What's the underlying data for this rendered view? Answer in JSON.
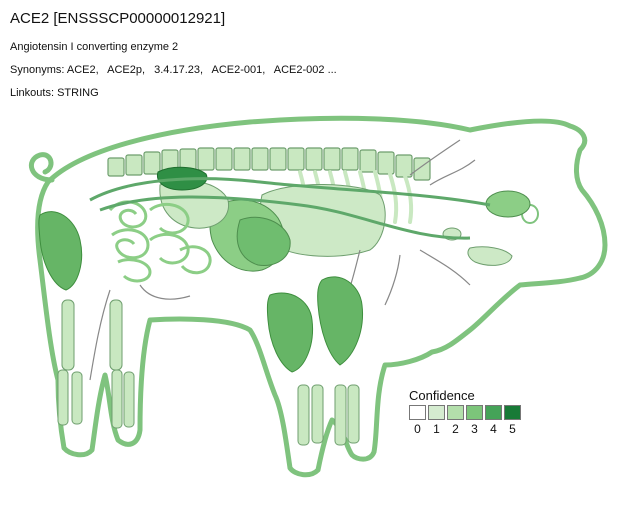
{
  "header": {
    "title": "ACE2 [ENSSSCP00000012921]",
    "description": "Angiotensin I converting enzyme 2",
    "synonyms_label": "Synonyms:",
    "synonyms": [
      "ACE2,",
      "ACE2p,",
      "3.4.17.23,",
      "ACE2-001,",
      "ACE2-002 ..."
    ],
    "linkouts_label": "Linkouts:",
    "linkouts": [
      "STRING"
    ]
  },
  "legend": {
    "title": "Confidence",
    "levels": [
      "0",
      "1",
      "2",
      "3",
      "4",
      "5"
    ],
    "colors": [
      "#ffffff",
      "#d5ecd0",
      "#b3dfab",
      "#7cc57a",
      "#45a358",
      "#187a37"
    ]
  },
  "colors": {
    "outline": "#7fc37e",
    "skeleton": "#c9e8c1",
    "vessel": "#5ea86a",
    "nerve": "#888888",
    "lung": "#cde9c6",
    "liver": "#8cce86",
    "heart": "#6fbd6f",
    "muscle": "#66b566",
    "kidney": "#2f8f45",
    "brain": "#8cce86"
  }
}
